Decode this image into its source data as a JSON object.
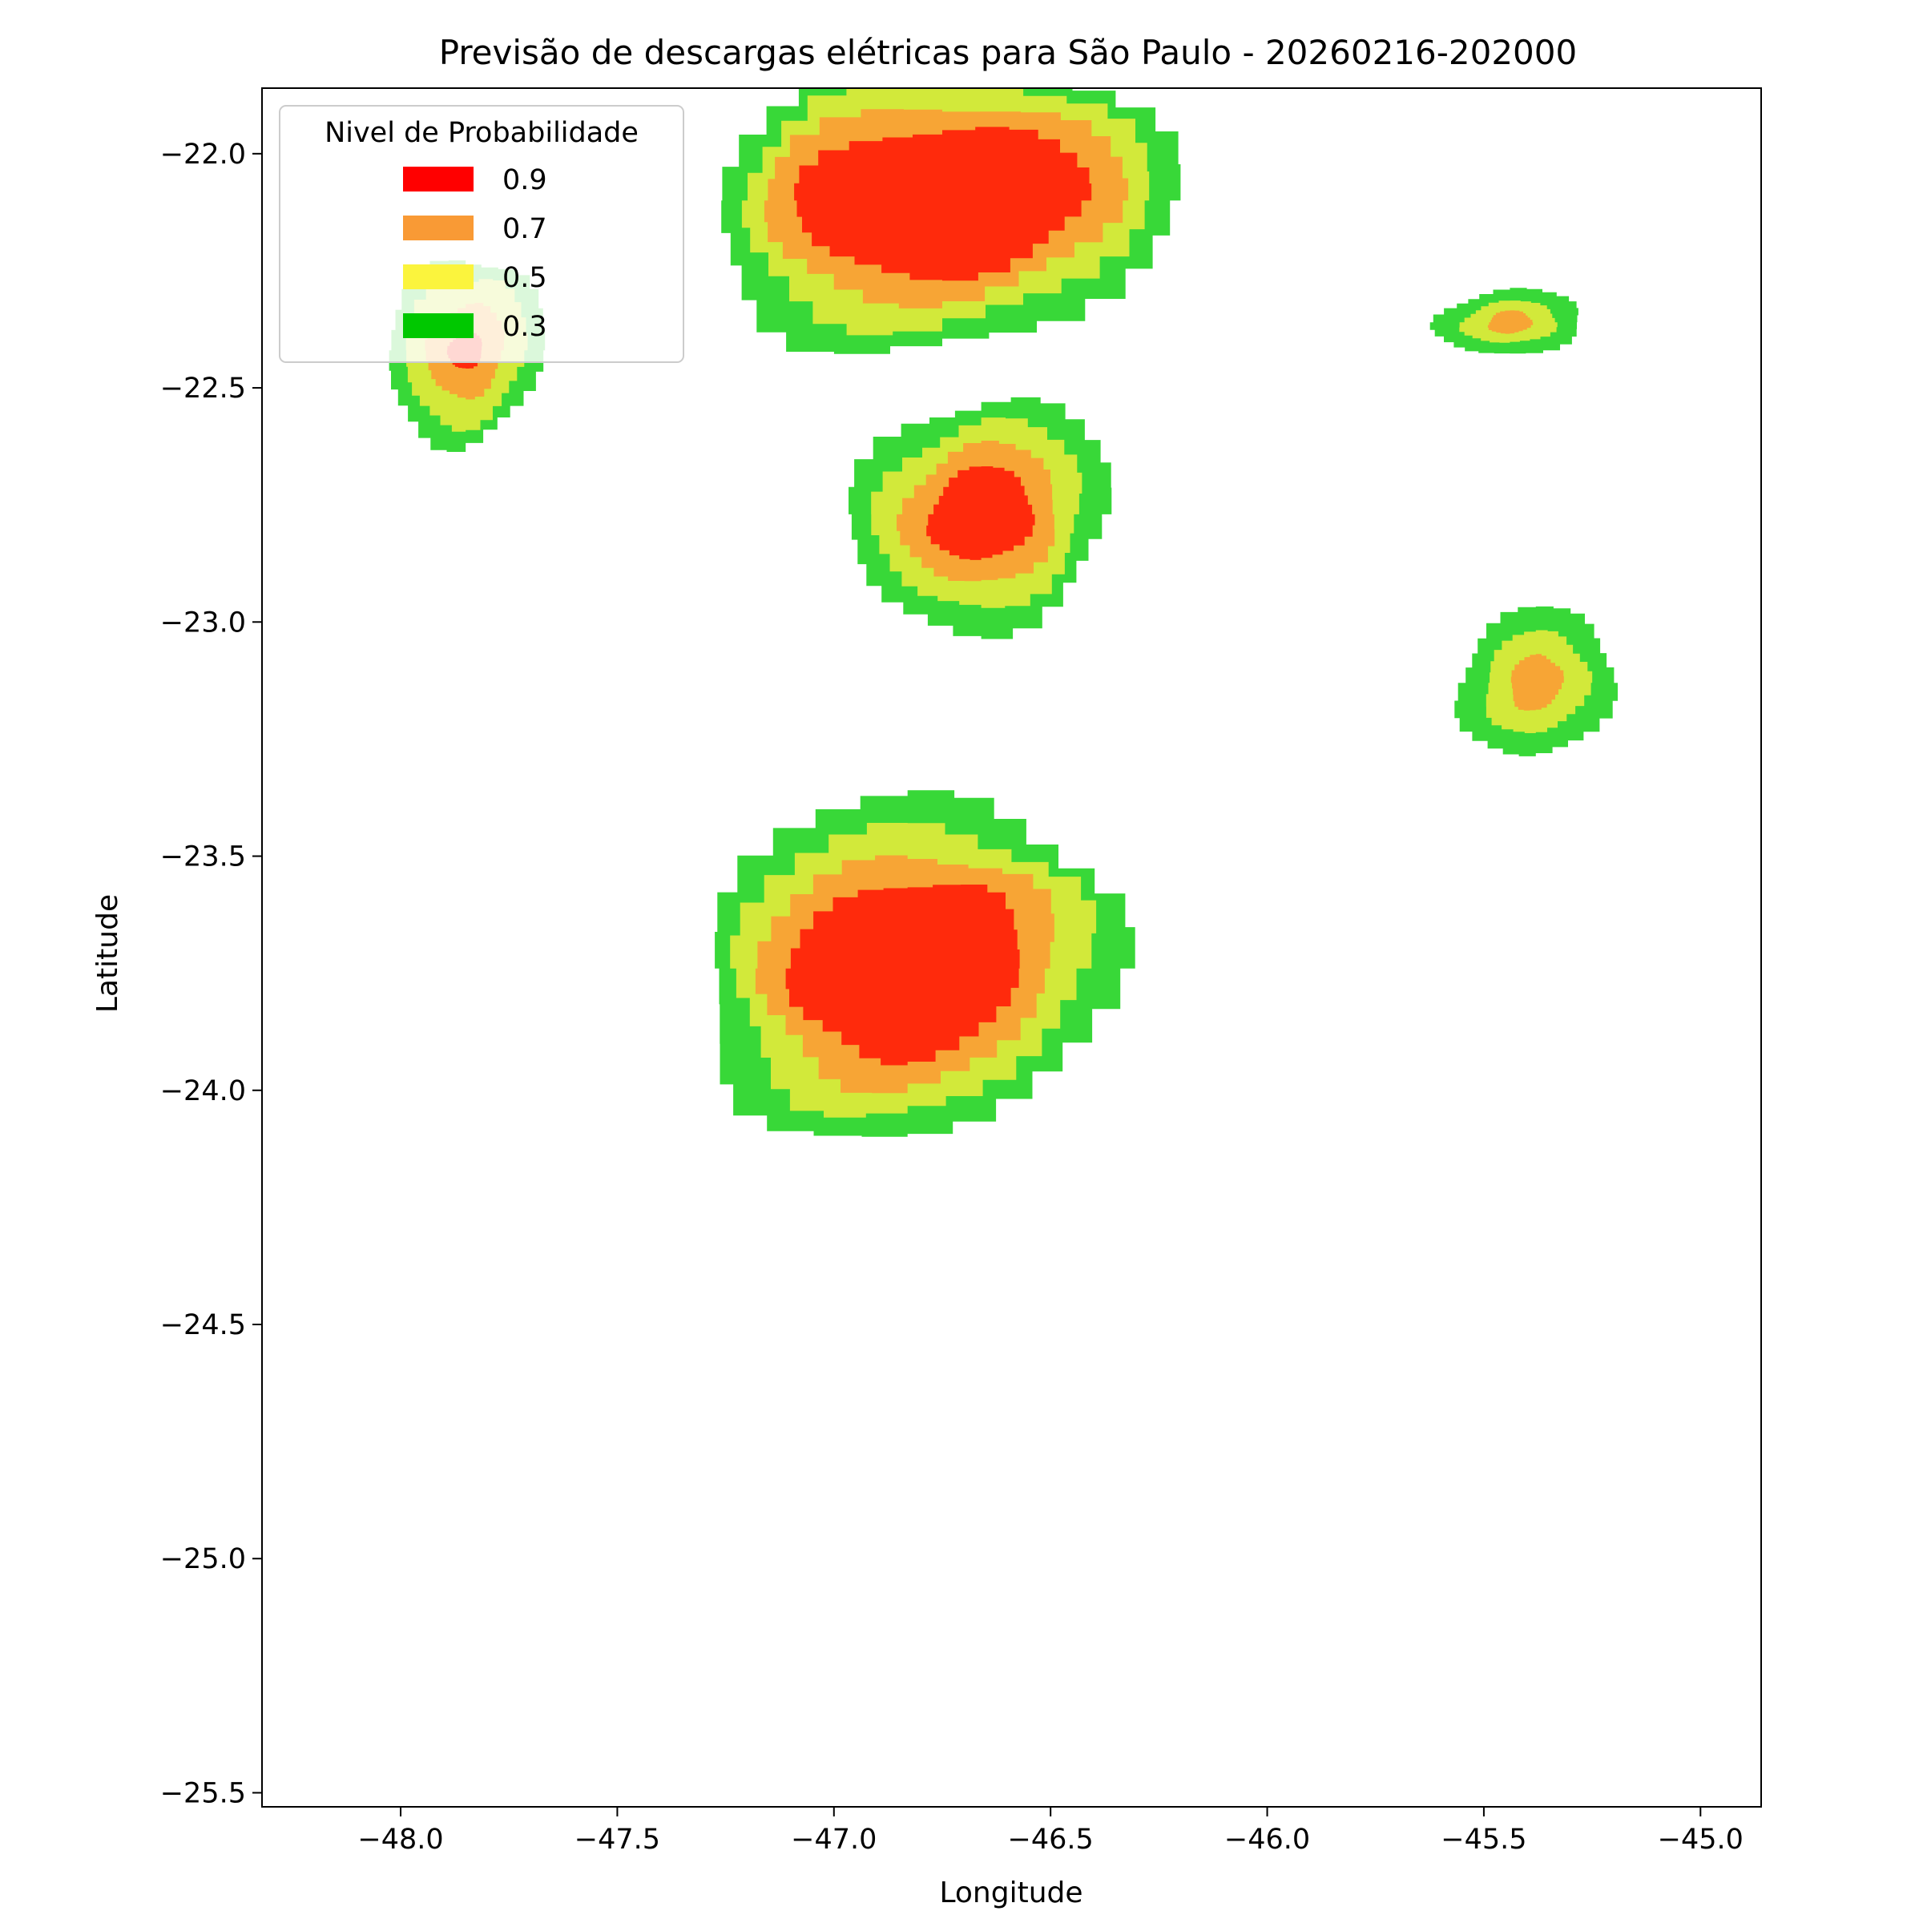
{
  "chart_data": {
    "type": "filled-contour-map",
    "title": "Previsão de descargas elétricas para São Paulo - 20260216-202000",
    "xlabel": "Longitude",
    "ylabel": "Latitude",
    "xlim": [
      -48.32,
      -44.86
    ],
    "ylim": [
      -25.53,
      -21.86
    ],
    "xticks": [
      -48.0,
      -47.5,
      -47.0,
      -46.5,
      -46.0,
      -45.5,
      -45.0
    ],
    "yticks": [
      -22.0,
      -22.5,
      -23.0,
      -23.5,
      -24.0,
      -24.5,
      -25.0,
      -25.5
    ],
    "grid": false,
    "legend": {
      "title": "Nivel de Probabilidade",
      "placement": "top-left",
      "entries": [
        {
          "label": "0.9",
          "color": "#ff0000"
        },
        {
          "label": "0.7",
          "color": "#f99a35"
        },
        {
          "label": "0.5",
          "color": "#fbf43d"
        },
        {
          "label": "0.3",
          "color": "#00c800"
        }
      ]
    },
    "level_colors": {
      "0.3": "#38d838",
      "0.5": "#d2e93a",
      "0.7": "#f7a535",
      "0.9": "#ff2a0c"
    },
    "cells": [
      {
        "name": "cell-north-central",
        "center": [
          -46.75,
          -22.1
        ],
        "levels": {
          "0.3": {
            "rx": 0.53,
            "ry": 0.33
          },
          "0.5": {
            "rx": 0.47,
            "ry": 0.27
          },
          "0.7": {
            "rx": 0.42,
            "ry": 0.21
          },
          "0.9": {
            "rx": 0.34,
            "ry": 0.16
          }
        }
      },
      {
        "name": "cell-northwest",
        "center": [
          -47.85,
          -22.42
        ],
        "levels": {
          "0.3": {
            "rx": 0.18,
            "ry": 0.2
          },
          "0.5": {
            "rx": 0.14,
            "ry": 0.16
          },
          "0.7": {
            "rx": 0.09,
            "ry": 0.1
          },
          "0.9": {
            "rx": 0.04,
            "ry": 0.04
          }
        }
      },
      {
        "name": "cell-central",
        "center": [
          -46.66,
          -22.77
        ],
        "levels": {
          "0.3": {
            "rx": 0.3,
            "ry": 0.25
          },
          "0.5": {
            "rx": 0.24,
            "ry": 0.2
          },
          "0.7": {
            "rx": 0.18,
            "ry": 0.15
          },
          "0.9": {
            "rx": 0.12,
            "ry": 0.1
          }
        }
      },
      {
        "name": "cell-northeast",
        "center": [
          -45.44,
          -22.36
        ],
        "levels": {
          "0.3": {
            "rx": 0.17,
            "ry": 0.07
          },
          "0.5": {
            "rx": 0.11,
            "ry": 0.045
          },
          "0.7": {
            "rx": 0.05,
            "ry": 0.025
          }
        }
      },
      {
        "name": "cell-east",
        "center": [
          -45.38,
          -23.13
        ],
        "levels": {
          "0.3": {
            "rx": 0.18,
            "ry": 0.16
          },
          "0.5": {
            "rx": 0.12,
            "ry": 0.11
          },
          "0.7": {
            "rx": 0.06,
            "ry": 0.06
          }
        }
      },
      {
        "name": "cell-south",
        "center": [
          -46.83,
          -23.74
        ],
        "levels": {
          "0.3": {
            "rx": 0.48,
            "ry": 0.37
          },
          "0.5": {
            "rx": 0.41,
            "ry": 0.31
          },
          "0.7": {
            "rx": 0.34,
            "ry": 0.25
          },
          "0.9": {
            "rx": 0.27,
            "ry": 0.19
          }
        }
      }
    ]
  }
}
